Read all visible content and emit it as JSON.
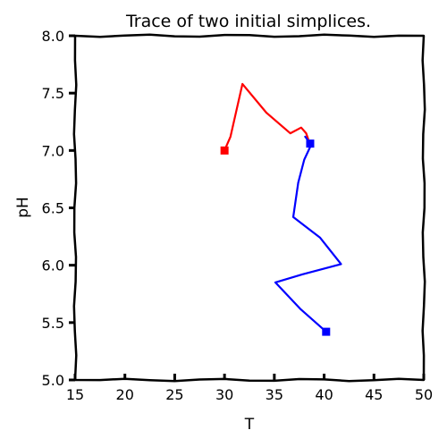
{
  "chart_data": {
    "type": "line",
    "title": "Trace of two initial simplices.",
    "xlabel": "T",
    "ylabel": "pH",
    "xlim": [
      15,
      50
    ],
    "ylim": [
      5.0,
      8.0
    ],
    "xticks": [
      "15",
      "20",
      "25",
      "30",
      "35",
      "40",
      "45",
      "50"
    ],
    "yticks": [
      "5.0",
      "5.5",
      "6.0",
      "6.5",
      "7.0",
      "7.5",
      "8.0"
    ],
    "grid": false,
    "series": [
      {
        "color": "#ff0000",
        "points": [
          [
            30.0,
            7.0
          ],
          [
            30.6,
            7.12
          ],
          [
            31.8,
            7.58
          ],
          [
            34.2,
            7.33
          ],
          [
            36.6,
            7.15
          ],
          [
            37.7,
            7.2
          ],
          [
            38.2,
            7.15
          ],
          [
            38.4,
            7.1
          ]
        ],
        "start_marker": [
          30.0,
          7.0
        ]
      },
      {
        "color": "#0000ff",
        "points": [
          [
            40.2,
            5.42
          ],
          [
            37.6,
            5.62
          ],
          [
            35.1,
            5.85
          ],
          [
            37.8,
            5.92
          ],
          [
            41.7,
            6.01
          ],
          [
            39.6,
            6.24
          ],
          [
            36.9,
            6.42
          ],
          [
            37.4,
            6.72
          ],
          [
            38.0,
            6.92
          ],
          [
            38.7,
            7.05
          ],
          [
            38.1,
            7.12
          ]
        ],
        "start_marker": [
          40.2,
          5.42
        ],
        "end_marker": [
          38.6,
          7.06
        ]
      }
    ]
  }
}
